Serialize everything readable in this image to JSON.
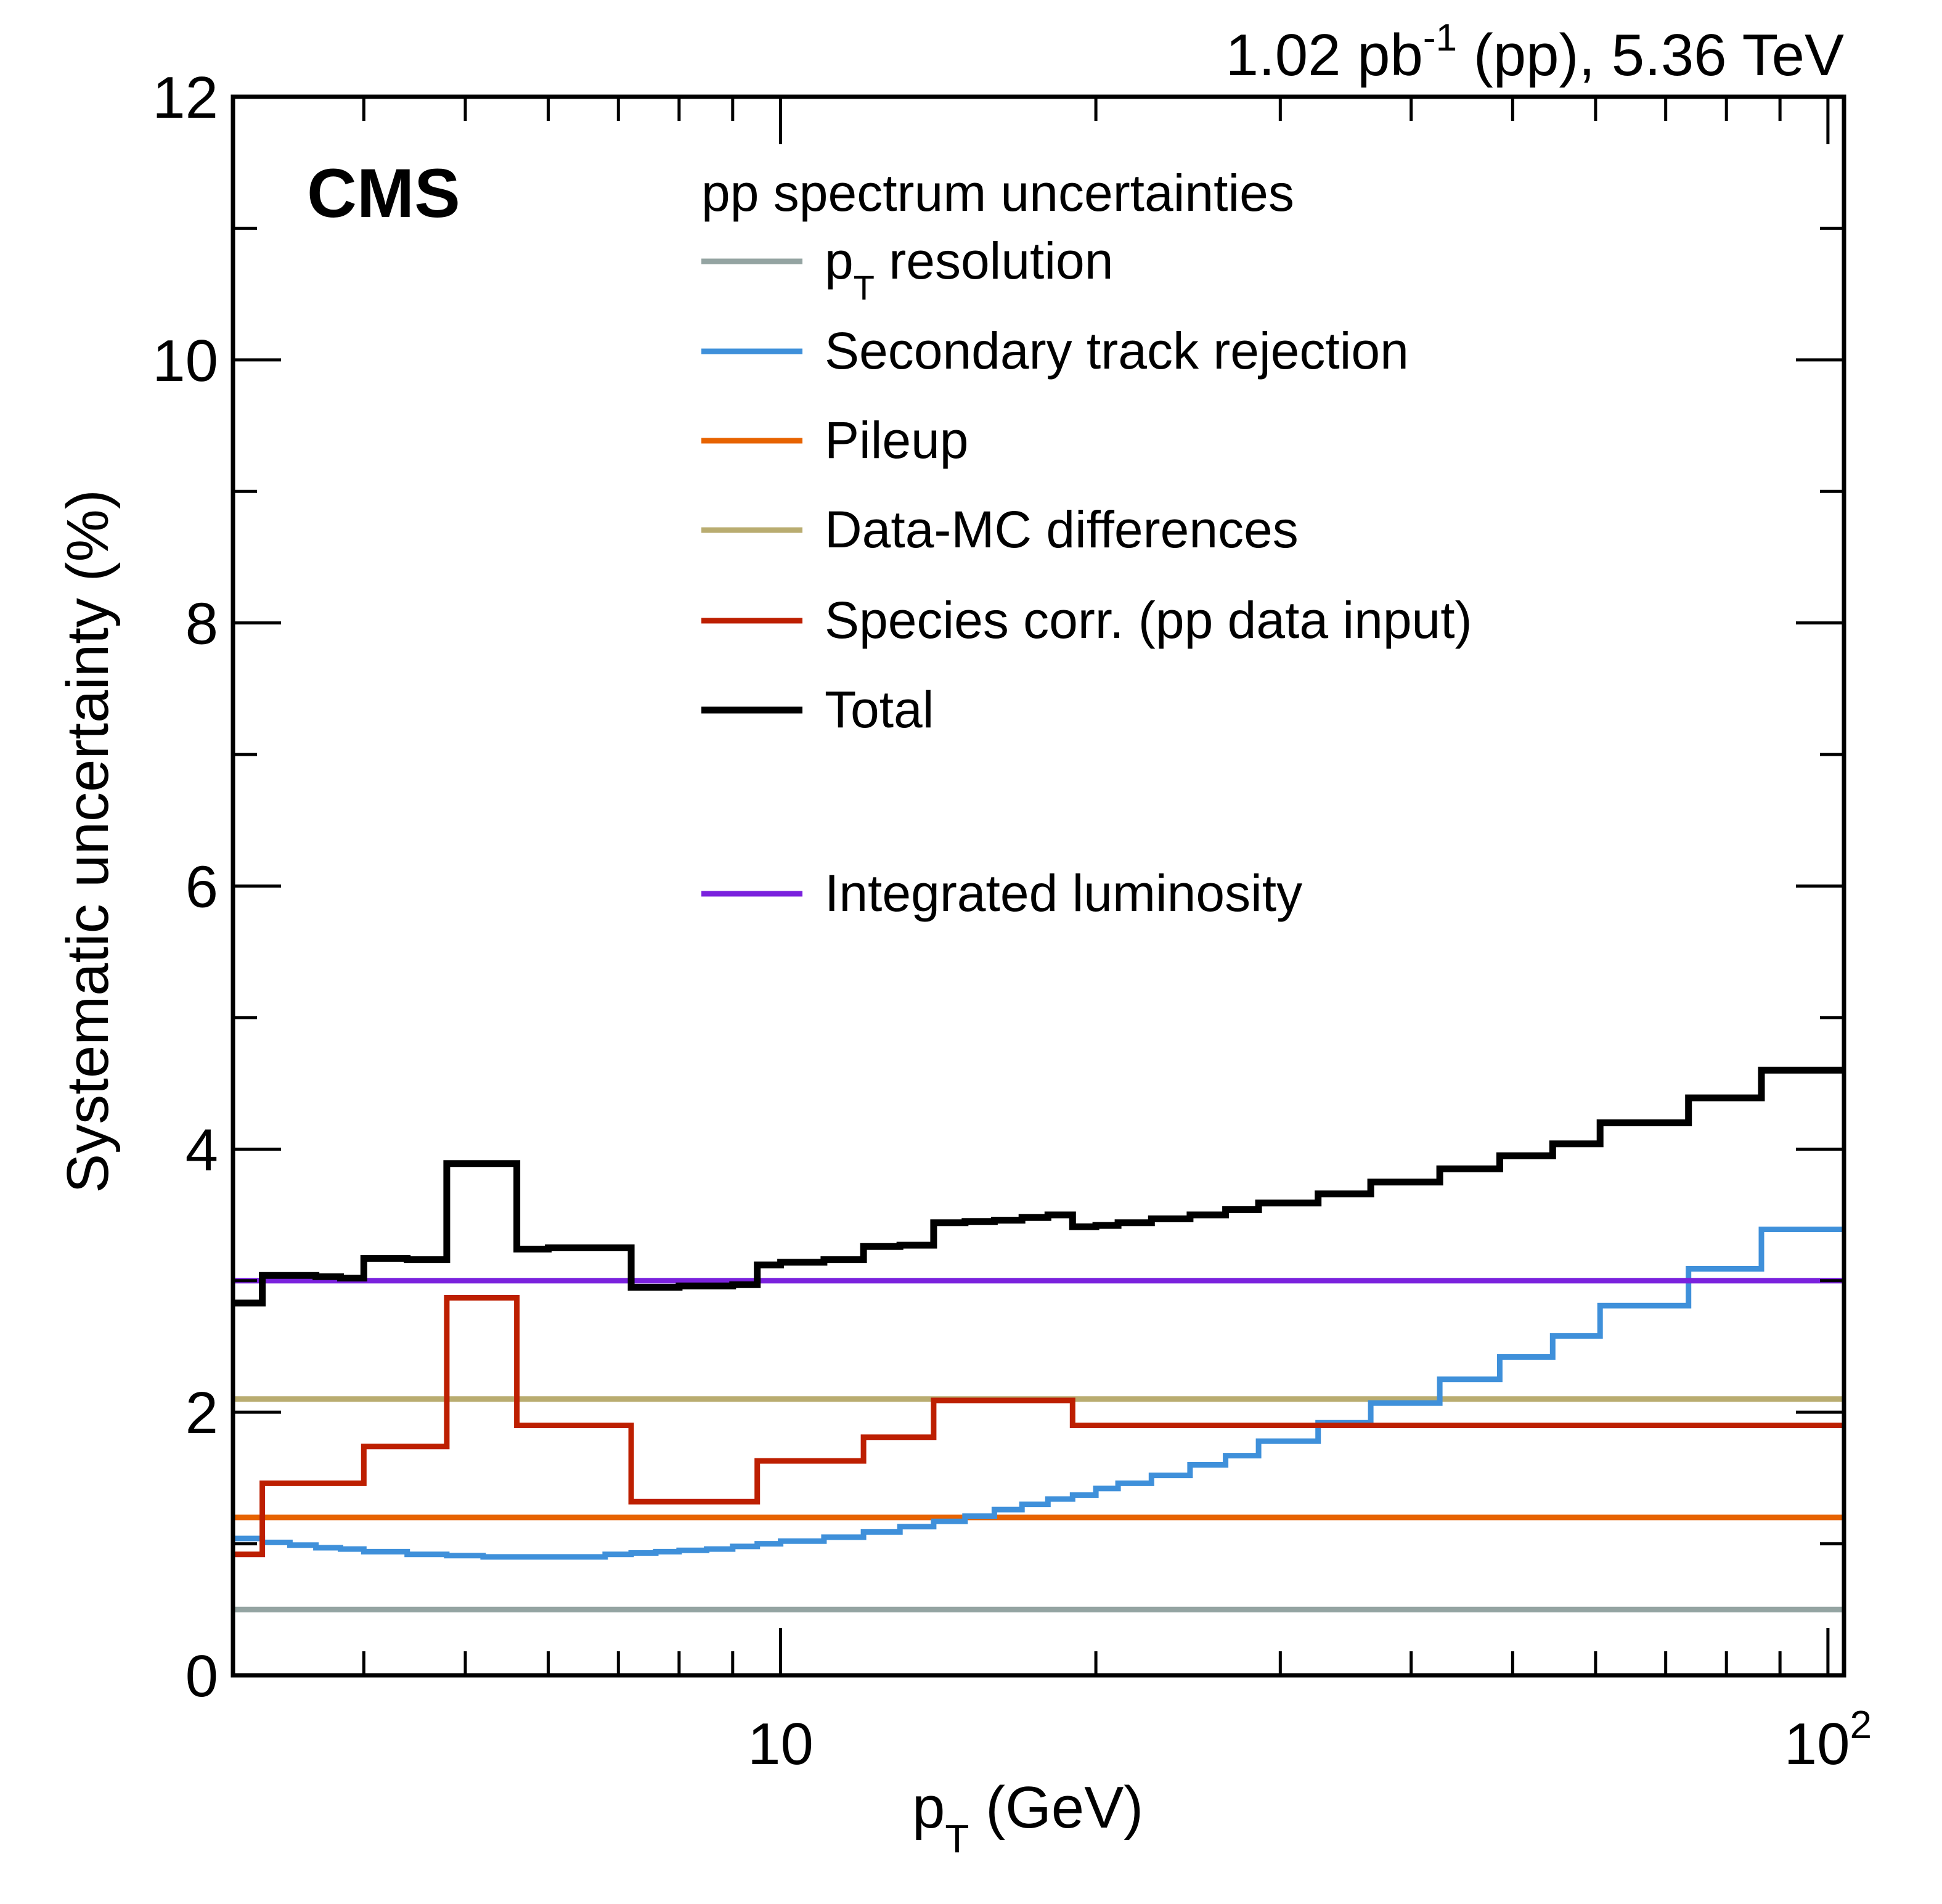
{
  "chart_data": {
    "type": "line",
    "subtype": "step-histogram",
    "header": {
      "experiment": "CMS",
      "lumi_value": "1.02 pb",
      "lumi_exponent": "-1",
      "lumi_rest": " (pp), 5.36 TeV"
    },
    "legend": {
      "title": "pp spectrum uncertainties",
      "placement": "top-center"
    },
    "xlabel": "p",
    "xlabel_sub": "T",
    "xlabel_rest": " (GeV)",
    "ylabel": "Systematic uncertainty (%)",
    "xscale": "log",
    "xlim": [
      3.0,
      103.6
    ],
    "ylim": [
      0,
      12
    ],
    "grid": false,
    "x_major_ticks": [
      {
        "value": 10,
        "label": "10",
        "sup": ""
      },
      {
        "value": 100,
        "label": "10",
        "sup": "2"
      }
    ],
    "x_minor_ticks": [
      4,
      5,
      6,
      7,
      8,
      9,
      20,
      30,
      40,
      50,
      60,
      70,
      80,
      90
    ],
    "y_major_ticks": [
      {
        "value": 0,
        "label": "0"
      },
      {
        "value": 2,
        "label": "2"
      },
      {
        "value": 4,
        "label": "4"
      },
      {
        "value": 6,
        "label": "6"
      },
      {
        "value": 8,
        "label": "8"
      },
      {
        "value": 10,
        "label": "10"
      },
      {
        "value": 12,
        "label": "12"
      }
    ],
    "y_minor_ticks": [
      1,
      3,
      5,
      7,
      9,
      11
    ],
    "series": [
      {
        "name": "pT resolution",
        "label_main": "p",
        "label_sub": "T",
        "label_rest": " resolution",
        "color": "#94A4A2",
        "bin_edges": [
          3.0,
          103.6
        ],
        "values": [
          0.5
        ]
      },
      {
        "name": "Secondary track rejection",
        "label_main": "Secondary track rejection",
        "color": "#3F90DA",
        "bin_edges": [
          3.0,
          3.2,
          3.4,
          3.6,
          3.8,
          4.0,
          4.4,
          4.8,
          5.2,
          5.6,
          6.0,
          6.4,
          6.8,
          7.2,
          7.6,
          8.0,
          8.5,
          9.0,
          9.5,
          10,
          11,
          12,
          13,
          14,
          15,
          16,
          17,
          18,
          19,
          20,
          21,
          22.6,
          24.6,
          26.6,
          28.6,
          32.6,
          36.6,
          42.6,
          48.6,
          54.6,
          60.6,
          73.6,
          86.4,
          103.6
        ],
        "values": [
          1.04,
          1.01,
          0.99,
          0.97,
          0.96,
          0.94,
          0.92,
          0.91,
          0.9,
          0.9,
          0.9,
          0.9,
          0.92,
          0.93,
          0.94,
          0.95,
          0.96,
          0.98,
          1.0,
          1.02,
          1.05,
          1.09,
          1.13,
          1.17,
          1.21,
          1.26,
          1.3,
          1.34,
          1.37,
          1.42,
          1.46,
          1.52,
          1.6,
          1.67,
          1.78,
          1.92,
          2.07,
          2.25,
          2.42,
          2.58,
          2.81,
          3.09,
          3.39
        ]
      },
      {
        "name": "Pileup",
        "label_main": "Pileup",
        "color": "#E76300",
        "bin_edges": [
          3.0,
          103.6
        ],
        "values": [
          1.2
        ]
      },
      {
        "name": "Data-MC differences",
        "label_main": "Data-MC differences",
        "color": "#B9AC70",
        "bin_edges": [
          3.0,
          103.6
        ],
        "values": [
          2.1
        ]
      },
      {
        "name": "Species corr. (pp data input)",
        "label_main": "Species corr. (pp data input)",
        "color": "#BD1F01",
        "bin_edges": [
          3.0,
          3.2,
          4.0,
          4.8,
          5.6,
          7.2,
          9.5,
          12,
          14,
          19,
          103.6
        ],
        "values": [
          0.92,
          1.46,
          1.74,
          2.87,
          1.9,
          1.32,
          1.63,
          1.81,
          2.09,
          1.9
        ]
      },
      {
        "name": "Total",
        "label_main": "Total",
        "color": "#000000",
        "bin_edges": [
          3.0,
          3.2,
          3.4,
          3.6,
          3.8,
          4.0,
          4.4,
          4.8,
          5.2,
          5.6,
          6.0,
          6.4,
          6.8,
          7.2,
          7.6,
          8.0,
          8.5,
          9.0,
          9.5,
          10,
          11,
          12,
          13,
          14,
          15,
          16,
          17,
          18,
          19,
          20,
          21,
          22.6,
          24.6,
          26.6,
          28.6,
          32.6,
          36.6,
          42.6,
          48.6,
          54.6,
          60.6,
          73.6,
          86.4,
          103.6
        ],
        "values": [
          2.83,
          3.04,
          3.04,
          3.03,
          3.02,
          3.17,
          3.16,
          3.89,
          3.89,
          3.24,
          3.25,
          3.25,
          3.25,
          2.95,
          2.95,
          2.96,
          2.96,
          2.97,
          3.12,
          3.14,
          3.16,
          3.26,
          3.27,
          3.44,
          3.45,
          3.46,
          3.48,
          3.5,
          3.41,
          3.42,
          3.44,
          3.47,
          3.5,
          3.54,
          3.59,
          3.66,
          3.75,
          3.85,
          3.95,
          4.04,
          4.2,
          4.39,
          4.6
        ]
      },
      {
        "name": "Integrated luminosity",
        "label_main": "Integrated luminosity",
        "color": "#7A21DD",
        "bin_edges": [
          3.0,
          103.6
        ],
        "values": [
          3.0
        ]
      }
    ]
  }
}
